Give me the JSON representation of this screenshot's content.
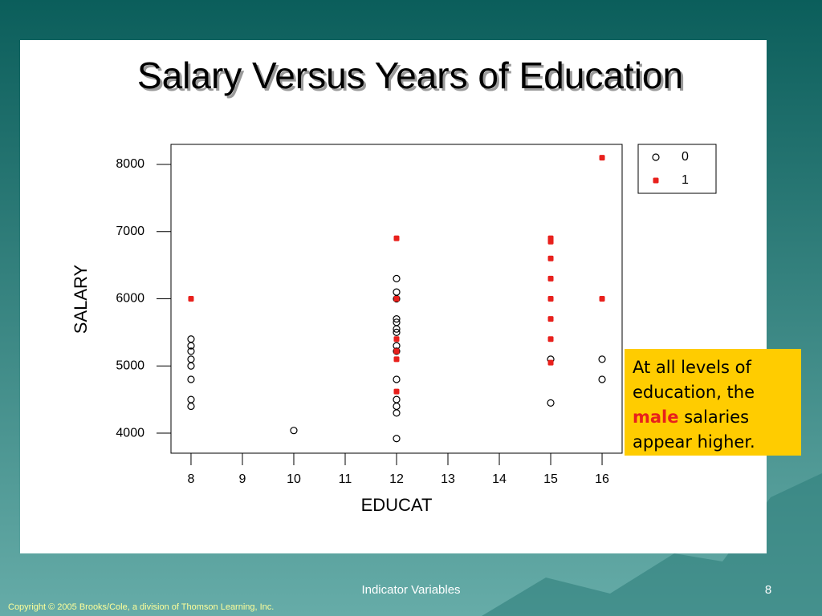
{
  "chart_data": {
    "type": "scatter",
    "title": "Salary Versus Years of Education",
    "xlabel": "EDUCAT",
    "ylabel": "SALARY",
    "xlim": [
      7.61,
      16.39
    ],
    "ylim": [
      3702,
      8298
    ],
    "xticks": [
      8,
      9,
      10,
      11,
      12,
      13,
      14,
      15,
      16
    ],
    "yticks": [
      4000,
      5000,
      6000,
      7000,
      8000
    ],
    "legend": "top-right",
    "series": [
      {
        "name": "0",
        "color": "#000000",
        "marker": "open-circle",
        "x": [
          8,
          8,
          8,
          8,
          8,
          8,
          8,
          8,
          10,
          12,
          12,
          12,
          12,
          12,
          12,
          12,
          12,
          12,
          12,
          12,
          12,
          12,
          12,
          15,
          15,
          16,
          16
        ],
        "values": [
          5400,
          5300,
          5220,
          5100,
          5000,
          4800,
          4500,
          4400,
          4040,
          6300,
          6100,
          6000,
          5700,
          5650,
          5550,
          5500,
          5300,
          5220,
          4800,
          4500,
          4400,
          4300,
          3920,
          5100,
          4450,
          5100,
          4800
        ]
      },
      {
        "name": "1",
        "color": "#e8201c",
        "marker": "filled-square",
        "x": [
          8,
          12,
          12,
          12,
          12,
          12,
          12,
          15,
          15,
          15,
          15,
          15,
          15,
          15,
          15,
          16,
          16
        ],
        "values": [
          6000,
          6900,
          6000,
          5400,
          5220,
          5100,
          4620,
          6900,
          6850,
          6600,
          6300,
          6000,
          5700,
          5400,
          5050,
          8100,
          6000
        ]
      }
    ]
  },
  "callout": {
    "before": "At all levels of education, the",
    "emphasis": "male",
    "after": "salaries appear higher."
  },
  "footer": {
    "center": "Indicator Variables",
    "page": "8",
    "copyright": "Copyright © 2005 Brooks/Cole, a division of Thomson Learning, Inc."
  }
}
